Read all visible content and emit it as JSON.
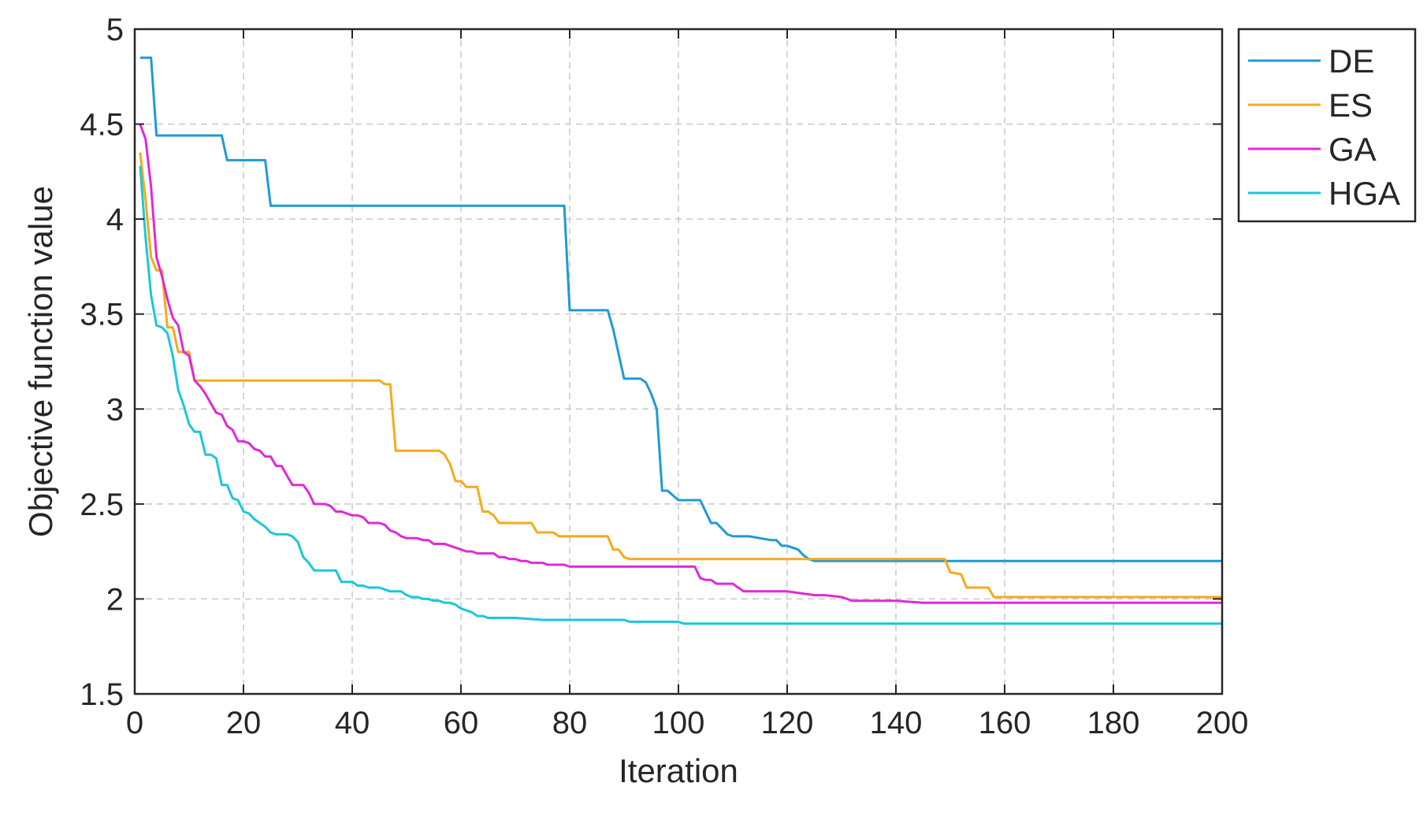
{
  "chart_data": {
    "type": "line",
    "xlabel": "Iteration",
    "ylabel": "Objective function value",
    "xlim": [
      0,
      200
    ],
    "ylim": [
      1.5,
      5
    ],
    "xticks": [
      "0",
      "20",
      "40",
      "60",
      "80",
      "100",
      "120",
      "140",
      "160",
      "180",
      "200"
    ],
    "yticks": [
      "1.5",
      "2",
      "2.5",
      "3",
      "3.5",
      "4",
      "4.5",
      "5"
    ],
    "grid": true,
    "legend_position": "outside-right-top",
    "series": [
      {
        "name": "DE",
        "color": "#1f9ad6",
        "x": [
          1,
          3,
          4,
          16,
          17,
          24,
          25,
          79,
          80,
          87,
          88,
          89,
          90,
          93,
          94,
          95,
          96,
          97,
          98,
          100,
          101,
          104,
          105,
          106,
          107,
          108,
          109,
          110,
          111,
          112,
          113,
          115,
          117,
          118,
          119,
          120,
          121,
          122,
          123,
          124,
          125,
          200
        ],
        "y": [
          4.85,
          4.85,
          4.44,
          4.44,
          4.31,
          4.31,
          4.07,
          4.07,
          3.52,
          3.52,
          3.42,
          3.29,
          3.16,
          3.16,
          3.14,
          3.08,
          3.0,
          2.57,
          2.57,
          2.52,
          2.52,
          2.52,
          2.46,
          2.4,
          2.4,
          2.37,
          2.34,
          2.33,
          2.33,
          2.33,
          2.33,
          2.32,
          2.31,
          2.31,
          2.28,
          2.28,
          2.27,
          2.26,
          2.23,
          2.21,
          2.2,
          2.2
        ]
      },
      {
        "name": "ES",
        "color": "#f5aa1c",
        "x": [
          1,
          2,
          3,
          4,
          5,
          6,
          7,
          8,
          9,
          10,
          11,
          12,
          13,
          44,
          45,
          46,
          47,
          48,
          56,
          57,
          58,
          59,
          60,
          61,
          62,
          63,
          64,
          65,
          66,
          67,
          68,
          73,
          74,
          77,
          78,
          87,
          88,
          89,
          90,
          91,
          148,
          149,
          150,
          152,
          153,
          157,
          158,
          200
        ],
        "y": [
          4.35,
          4.1,
          3.8,
          3.73,
          3.73,
          3.43,
          3.43,
          3.3,
          3.3,
          3.3,
          3.15,
          3.15,
          3.15,
          3.15,
          3.15,
          3.13,
          3.13,
          2.78,
          2.78,
          2.76,
          2.71,
          2.62,
          2.62,
          2.59,
          2.59,
          2.59,
          2.46,
          2.46,
          2.44,
          2.4,
          2.4,
          2.4,
          2.35,
          2.35,
          2.33,
          2.33,
          2.26,
          2.26,
          2.22,
          2.21,
          2.21,
          2.21,
          2.14,
          2.13,
          2.06,
          2.06,
          2.01,
          2.01
        ]
      },
      {
        "name": "GA",
        "color": "#e02ad6",
        "x": [
          1,
          2,
          3,
          4,
          5,
          6,
          7,
          8,
          9,
          10,
          11,
          12,
          13,
          14,
          15,
          16,
          17,
          18,
          19,
          20,
          21,
          22,
          23,
          24,
          25,
          26,
          27,
          28,
          29,
          30,
          31,
          32,
          33,
          34,
          35,
          36,
          37,
          38,
          39,
          40,
          41,
          42,
          43,
          44,
          45,
          46,
          47,
          48,
          49,
          50,
          51,
          52,
          53,
          54,
          55,
          56,
          57,
          58,
          59,
          60,
          61,
          62,
          63,
          64,
          65,
          66,
          67,
          68,
          69,
          70,
          71,
          72,
          73,
          74,
          75,
          76,
          77,
          78,
          79,
          80,
          85,
          90,
          95,
          100,
          103,
          104,
          105,
          106,
          107,
          108,
          109,
          110,
          111,
          112,
          113,
          115,
          120,
          125,
          127,
          130,
          132,
          135,
          140,
          145,
          150,
          155,
          160,
          200
        ],
        "y": [
          4.5,
          4.42,
          4.17,
          3.8,
          3.7,
          3.58,
          3.48,
          3.44,
          3.3,
          3.28,
          3.15,
          3.12,
          3.08,
          3.03,
          2.98,
          2.97,
          2.91,
          2.89,
          2.83,
          2.83,
          2.82,
          2.79,
          2.78,
          2.75,
          2.75,
          2.7,
          2.7,
          2.65,
          2.6,
          2.6,
          2.6,
          2.56,
          2.5,
          2.5,
          2.5,
          2.49,
          2.46,
          2.46,
          2.45,
          2.44,
          2.44,
          2.43,
          2.4,
          2.4,
          2.4,
          2.39,
          2.36,
          2.35,
          2.33,
          2.32,
          2.32,
          2.32,
          2.31,
          2.31,
          2.29,
          2.29,
          2.29,
          2.28,
          2.27,
          2.26,
          2.25,
          2.25,
          2.24,
          2.24,
          2.24,
          2.24,
          2.22,
          2.22,
          2.21,
          2.21,
          2.2,
          2.2,
          2.19,
          2.19,
          2.19,
          2.18,
          2.18,
          2.18,
          2.18,
          2.17,
          2.17,
          2.17,
          2.17,
          2.17,
          2.17,
          2.11,
          2.1,
          2.1,
          2.08,
          2.08,
          2.08,
          2.08,
          2.06,
          2.04,
          2.04,
          2.04,
          2.04,
          2.02,
          2.02,
          2.01,
          1.99,
          1.99,
          1.99,
          1.98,
          1.98,
          1.98,
          1.98,
          1.98
        ]
      },
      {
        "name": "HGA",
        "color": "#1bc7d8",
        "x": [
          1,
          2,
          3,
          4,
          5,
          6,
          7,
          8,
          9,
          10,
          11,
          12,
          13,
          14,
          15,
          16,
          17,
          18,
          19,
          20,
          21,
          22,
          23,
          24,
          25,
          26,
          27,
          28,
          29,
          30,
          31,
          32,
          33,
          34,
          35,
          36,
          37,
          38,
          39,
          40,
          41,
          42,
          43,
          44,
          45,
          46,
          47,
          48,
          49,
          50,
          51,
          52,
          53,
          54,
          55,
          56,
          57,
          58,
          59,
          60,
          61,
          62,
          63,
          64,
          65,
          70,
          75,
          80,
          85,
          90,
          91,
          92,
          93,
          95,
          100,
          101,
          105,
          110,
          120,
          200
        ],
        "y": [
          4.28,
          3.9,
          3.6,
          3.44,
          3.43,
          3.4,
          3.28,
          3.1,
          3.02,
          2.92,
          2.88,
          2.88,
          2.76,
          2.76,
          2.74,
          2.6,
          2.6,
          2.53,
          2.52,
          2.46,
          2.45,
          2.42,
          2.4,
          2.38,
          2.35,
          2.34,
          2.34,
          2.34,
          2.33,
          2.3,
          2.22,
          2.19,
          2.15,
          2.15,
          2.15,
          2.15,
          2.15,
          2.09,
          2.09,
          2.09,
          2.07,
          2.07,
          2.06,
          2.06,
          2.06,
          2.05,
          2.04,
          2.04,
          2.04,
          2.02,
          2.01,
          2.01,
          2.0,
          2.0,
          1.99,
          1.99,
          1.98,
          1.98,
          1.97,
          1.95,
          1.94,
          1.93,
          1.91,
          1.91,
          1.9,
          1.9,
          1.89,
          1.89,
          1.89,
          1.89,
          1.88,
          1.88,
          1.88,
          1.88,
          1.88,
          1.87,
          1.87,
          1.87,
          1.87,
          1.87
        ]
      }
    ]
  }
}
